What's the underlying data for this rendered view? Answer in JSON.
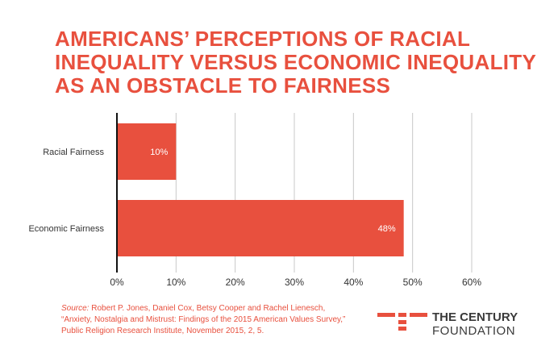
{
  "title": {
    "line1": "AMERICANS’ PERCEPTIONS OF RACIAL",
    "line2": "INEQUALITY VERSUS ECONOMIC INEQUALITY",
    "line3": "AS AN OBSTACLE TO FAIRNESS"
  },
  "chart_data": {
    "type": "bar",
    "orientation": "horizontal",
    "categories": [
      "Racial Fairness",
      "Economic Fairness"
    ],
    "values": [
      10,
      48.5
    ],
    "data_labels": [
      "10%",
      "48%"
    ],
    "x_ticks": [
      "0%",
      "10%",
      "20%",
      "30%",
      "40%",
      "50%",
      "60%"
    ],
    "xlim": [
      0,
      60
    ],
    "grid": true,
    "bar_color": "#e8503e"
  },
  "source": {
    "label": "Source:",
    "line1": " Robert P. Jones, Daniel Cox, Betsy Cooper and Rachel Lienesch,",
    "line2": "“Anxiety, Nostalgia and Mistrust: Findings of the 2015 American Values Survey,”",
    "line3": "Public Religion Research Institute, November 2015, 2, 5."
  },
  "logo": {
    "line1": "THE CENTURY",
    "line2": "FOUNDATION",
    "icon": "century-foundation-logo-icon",
    "accent": "#e8503e"
  }
}
